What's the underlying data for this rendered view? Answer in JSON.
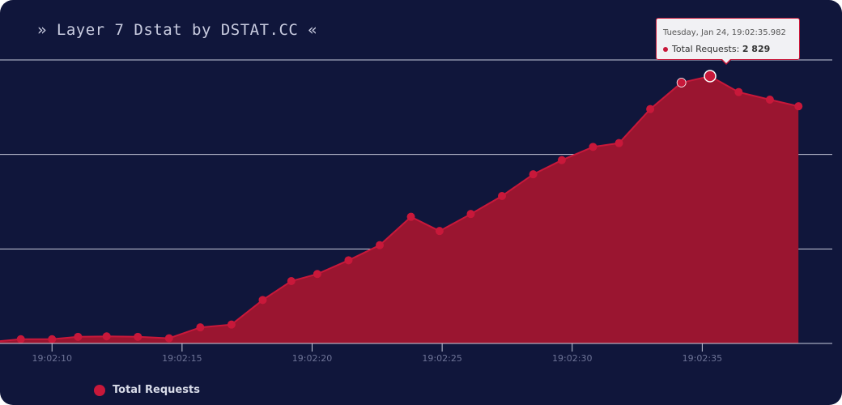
{
  "title": "» Layer 7 Dstat by DSTAT.CC «",
  "colors": {
    "background": "#10163b",
    "series": "#c8183a",
    "area": "#9a1530",
    "grid": "#c9ccdc"
  },
  "tooltip": {
    "date": "Tuesday, Jan 24, 19:02:35.982",
    "series_label": "Total Requests:",
    "value": "2 829"
  },
  "legend": {
    "label": "Total Requests"
  },
  "chart_data": {
    "type": "area",
    "title": "» Layer 7 Dstat by DSTAT.CC «",
    "xlabel": "",
    "ylabel": "",
    "x_ticks": [
      "19:02:10",
      "19:02:15",
      "19:02:20",
      "19:02:25",
      "19:02:30",
      "19:02:35"
    ],
    "x_tick_seconds": [
      10,
      15,
      20,
      25,
      30,
      35
    ],
    "xlim": [
      8.0,
      40.0
    ],
    "ylim": [
      0,
      3000
    ],
    "grid": true,
    "legend_position": "bottom-left",
    "series": [
      {
        "name": "Total Requests",
        "x": [
          8.0,
          8.8,
          10.0,
          11.0,
          12.1,
          13.3,
          14.5,
          15.7,
          16.9,
          18.1,
          19.2,
          20.2,
          21.4,
          22.6,
          23.8,
          24.9,
          26.1,
          27.3,
          28.5,
          29.6,
          30.8,
          31.8,
          33.0,
          34.2,
          35.3,
          36.4,
          37.6,
          38.7
        ],
        "values": [
          25,
          45,
          45,
          70,
          75,
          70,
          55,
          170,
          200,
          460,
          660,
          735,
          880,
          1040,
          1340,
          1190,
          1370,
          1560,
          1790,
          1940,
          2080,
          2120,
          2480,
          2760,
          2829,
          2660,
          2580,
          2510
        ]
      }
    ],
    "highlighted_point": {
      "x": 35.3,
      "value": 2829
    }
  }
}
